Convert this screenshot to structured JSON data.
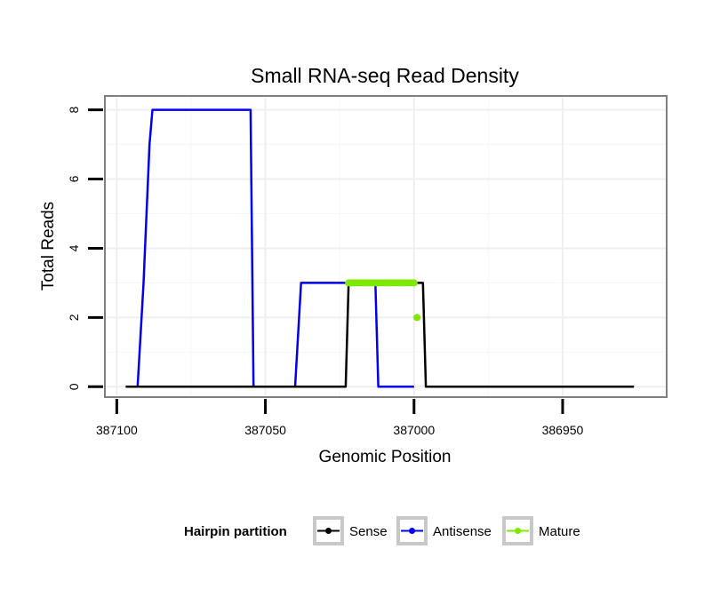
{
  "chart_data": {
    "type": "line",
    "title": "Small RNA-seq Read Density",
    "xlabel": "Genomic Position",
    "ylabel": "Total Reads",
    "xlim": [
      387104,
      386915
    ],
    "ylim": [
      -0.3,
      8.4
    ],
    "x_reversed": true,
    "x_ticks": [
      387100,
      387050,
      387000,
      386950
    ],
    "x_tick_labels": [
      "387100",
      "387050",
      "387000",
      "386950"
    ],
    "y_ticks": [
      0,
      2,
      4,
      6,
      8
    ],
    "y_tick_labels": [
      "0",
      "2",
      "4",
      "6",
      "8"
    ],
    "grid": true,
    "legend": {
      "title": "Hairpin partition",
      "placement": "bottom",
      "entries": [
        "Sense",
        "Antisense",
        "Mature"
      ]
    },
    "series": [
      {
        "name": "Sense",
        "color": "#000000",
        "x": [
          387097,
          387023,
          387022,
          386997,
          386996,
          386926
        ],
        "y": [
          0,
          0,
          3,
          3,
          0,
          0
        ]
      },
      {
        "name": "Antisense",
        "color": "#0000ee",
        "x": [
          387093,
          387091,
          387089,
          387088,
          387055,
          387054,
          387040,
          387038,
          387013,
          387012,
          387000
        ],
        "y": [
          0,
          3,
          7,
          8,
          8,
          0,
          0,
          3,
          3,
          0,
          0
        ]
      },
      {
        "name": "Mature",
        "color": "#7fe800",
        "x": [
          387022,
          387021,
          387020,
          387019,
          387018,
          387017,
          387016,
          387015,
          387014,
          387013,
          387012,
          387011,
          387010,
          387009,
          387008,
          387007,
          387006,
          387005,
          387004,
          387003,
          387002,
          387001,
          387000,
          386999
        ],
        "y": [
          3,
          3,
          3,
          3,
          3,
          3,
          3,
          3,
          3,
          3,
          3,
          3,
          3,
          3,
          3,
          3,
          3,
          3,
          3,
          3,
          3,
          3,
          3,
          2
        ]
      }
    ]
  }
}
